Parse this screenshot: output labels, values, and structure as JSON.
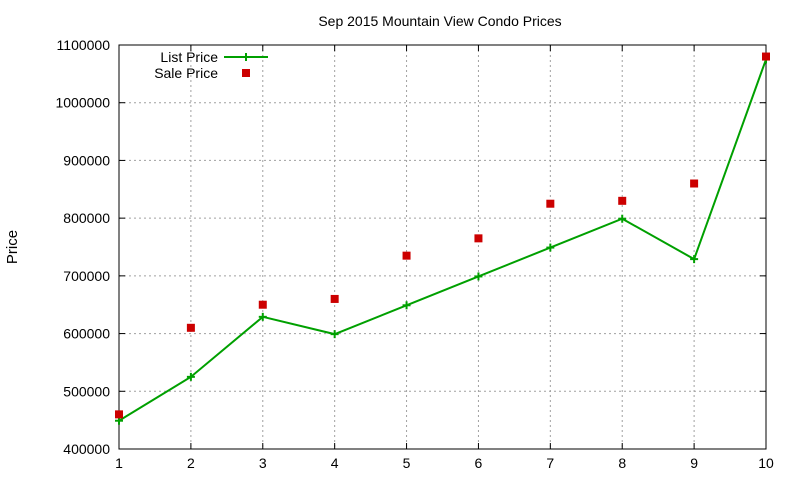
{
  "chart_data": {
    "type": "line",
    "title": "Sep 2015 Mountain View Condo Prices",
    "xlabel": "",
    "ylabel": "Price",
    "x": [
      1,
      2,
      3,
      4,
      5,
      6,
      7,
      8,
      9,
      10
    ],
    "xlim": [
      1,
      10
    ],
    "ylim": [
      400000,
      1100000
    ],
    "xticks": [
      "1",
      "2",
      "3",
      "4",
      "5",
      "6",
      "7",
      "8",
      "9",
      "10"
    ],
    "yticks": [
      "400000",
      "500000",
      "600000",
      "700000",
      "800000",
      "900000",
      "1000000",
      "1100000"
    ],
    "ytick_values": [
      400000,
      500000,
      600000,
      700000,
      800000,
      900000,
      1000000,
      1100000
    ],
    "grid": true,
    "legend_position": "top-left",
    "series": [
      {
        "name": "List Price",
        "style": "line-plus",
        "color": "#00a000",
        "values": [
          449000,
          525000,
          629000,
          599000,
          649000,
          699000,
          749000,
          799000,
          729000,
          1075000
        ]
      },
      {
        "name": "Sale Price",
        "style": "square-points",
        "color": "#cc0000",
        "values": [
          460000,
          610000,
          650000,
          660000,
          735000,
          765000,
          825000,
          830000,
          860000,
          1080000
        ]
      }
    ]
  }
}
